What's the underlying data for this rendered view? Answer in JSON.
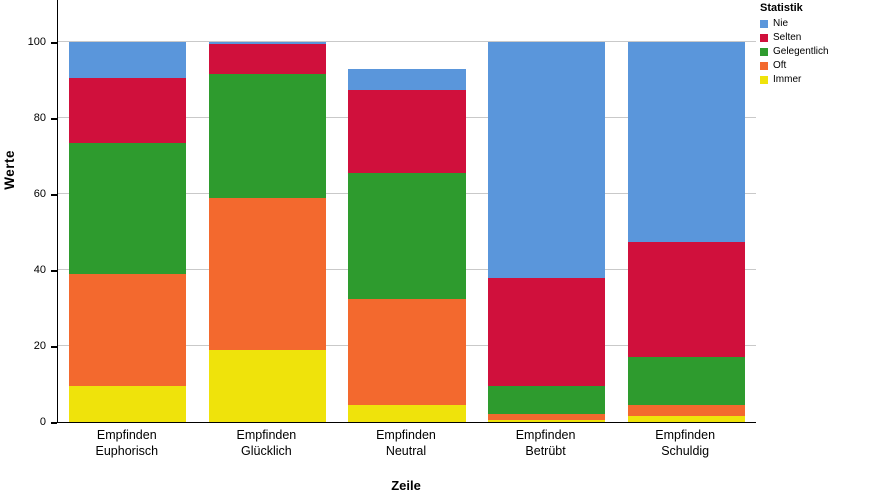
{
  "chart_data": {
    "type": "bar",
    "stacked": true,
    "title": "",
    "xlabel": "Zeile",
    "ylabel": "Werte",
    "ylim": [
      0,
      100
    ],
    "yticks": [
      0,
      20,
      40,
      60,
      80,
      100
    ],
    "grid": true,
    "legend_title": "Statistik",
    "legend_position": "outside-top-right",
    "categories": [
      "Empfinden\nEuphorisch",
      "Empfinden\nGlücklich",
      "Empfinden\nNeutral",
      "Empfinden\nBetrübt",
      "Empfinden\nSchuldig"
    ],
    "series": [
      {
        "name": "Immer",
        "color": "#EFE30B",
        "values": [
          9.5,
          19,
          4.5,
          0.5,
          1.5
        ]
      },
      {
        "name": "Oft",
        "color": "#F3692E",
        "values": [
          29.5,
          40,
          28,
          1.5,
          3
        ]
      },
      {
        "name": "Gelegentlich",
        "color": "#2E9B2E",
        "values": [
          34.5,
          32.5,
          33,
          7.5,
          12.5
        ]
      },
      {
        "name": "Selten",
        "color": "#D0103C",
        "values": [
          17,
          8,
          22,
          28.5,
          30.5
        ]
      },
      {
        "name": "Nie",
        "color": "#5A96DB",
        "values": [
          9.5,
          0.5,
          5.5,
          62,
          52.5
        ]
      }
    ],
    "legend_order": [
      "Nie",
      "Selten",
      "Gelegentlich",
      "Oft",
      "Immer"
    ]
  }
}
